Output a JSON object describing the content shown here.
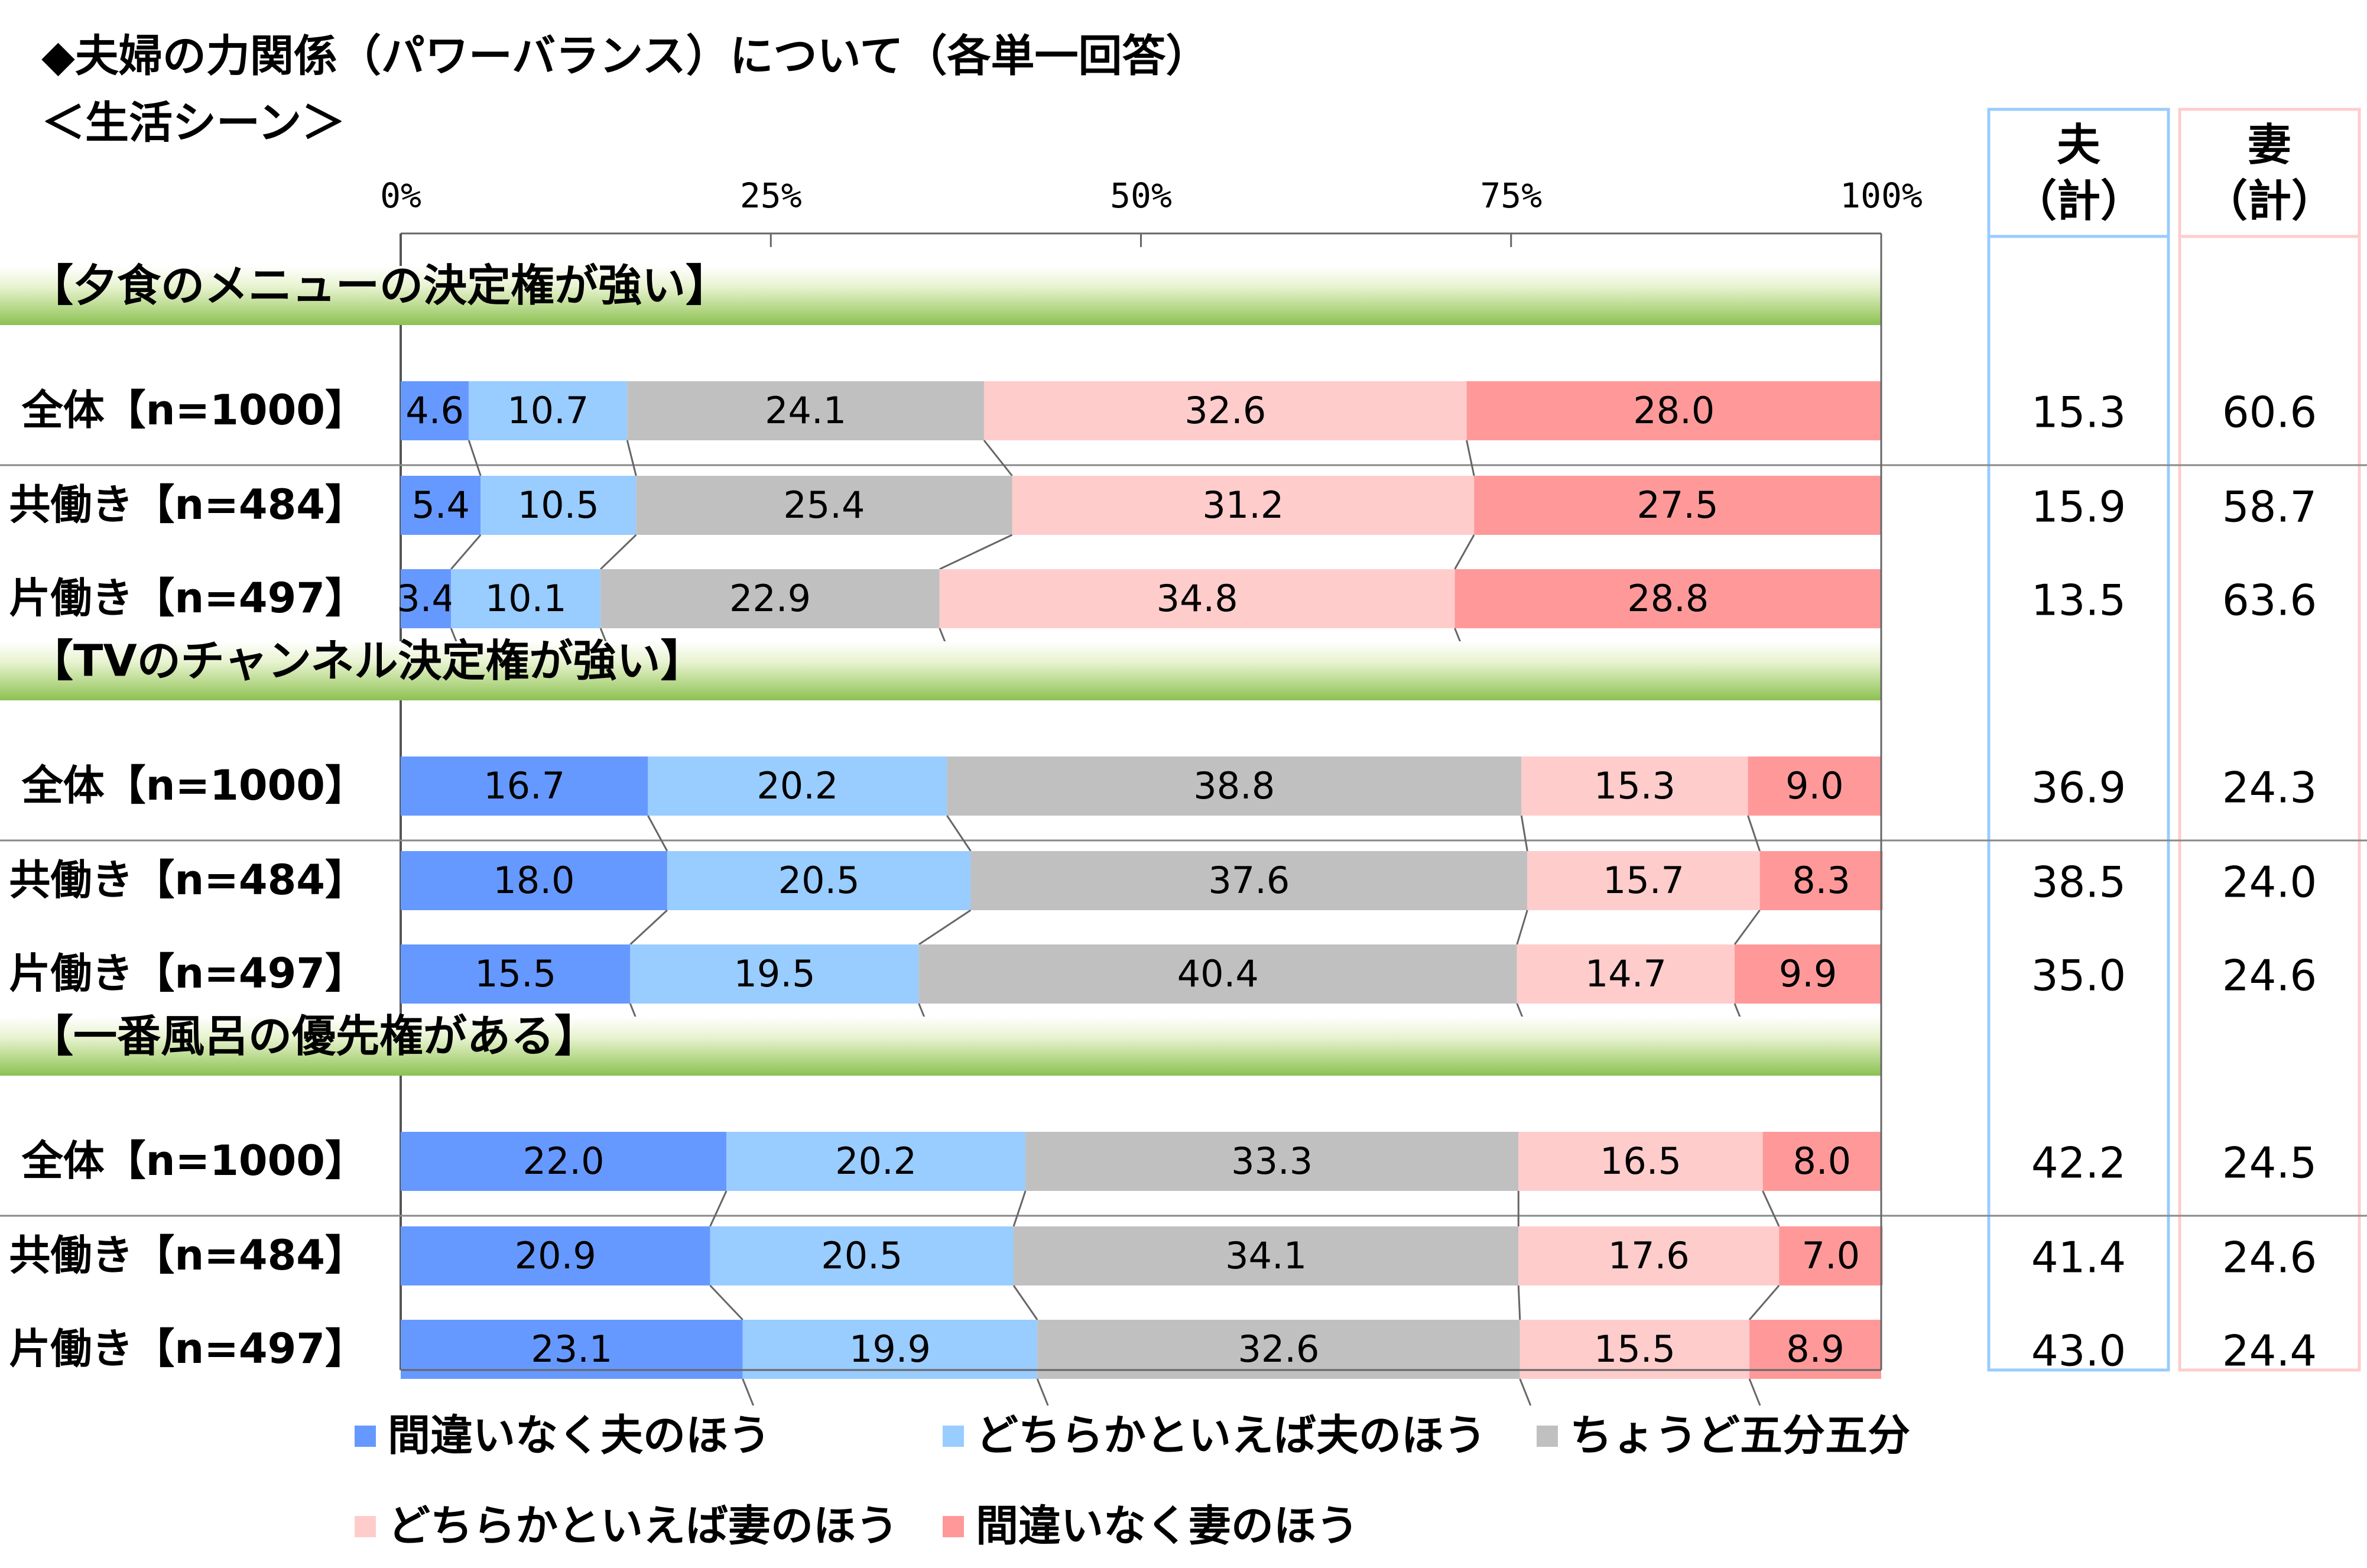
{
  "title_line1": "◆夫婦の力関係（パワーバランス）について（各単一回答）",
  "title_line2": "＜生活シーン＞",
  "chart_data": {
    "type": "bar",
    "orientation": "horizontal",
    "stacked": "percent",
    "x_ticks": [
      "0%",
      "25%",
      "50%",
      "75%",
      "100%"
    ],
    "xlim": [
      0,
      100
    ],
    "series": [
      {
        "name": "間違いなく夫のほう",
        "color": "#6699ff"
      },
      {
        "name": "どちらかといえば夫のほう",
        "color": "#99ccff"
      },
      {
        "name": "ちょうど五分五分",
        "color": "#c0c0c0"
      },
      {
        "name": "どちらかといえば妻のほう",
        "color": "#ffcccc"
      },
      {
        "name": "間違いなく妻のほう",
        "color": "#ff9999"
      }
    ],
    "summary_headers": [
      {
        "line1": "夫",
        "line2": "（計）",
        "color": "#99ccff"
      },
      {
        "line1": "妻",
        "line2": "（計）",
        "color": "#ffcccc"
      }
    ],
    "groups": [
      {
        "title": "【夕食のメニューの決定権が強い】",
        "rows": [
          {
            "label": "全体【n=1000】",
            "values": [
              4.6,
              10.7,
              24.1,
              32.6,
              28.0
            ],
            "labels": [
              "4.6",
              "10.7",
              "24.1",
              "32.6",
              "28.0"
            ],
            "husband_total": "15.3",
            "wife_total": "60.6"
          },
          {
            "label": "共働き【n=484】",
            "values": [
              5.4,
              10.5,
              25.4,
              31.2,
              27.5
            ],
            "labels": [
              "5.4",
              "10.5",
              "25.4",
              "31.2",
              "27.5"
            ],
            "husband_total": "15.9",
            "wife_total": "58.7"
          },
          {
            "label": "片働き【n=497】",
            "values": [
              3.4,
              10.1,
              22.9,
              34.8,
              28.8
            ],
            "labels": [
              "3.4",
              "10.1",
              "22.9",
              "34.8",
              "28.8"
            ],
            "husband_total": "13.5",
            "wife_total": "63.6"
          }
        ]
      },
      {
        "title": "【TVのチャンネル決定権が強い】",
        "rows": [
          {
            "label": "全体【n=1000】",
            "values": [
              16.7,
              20.2,
              38.8,
              15.3,
              9.0
            ],
            "labels": [
              "16.7",
              "20.2",
              "38.8",
              "15.3",
              "9.0"
            ],
            "husband_total": "36.9",
            "wife_total": "24.3"
          },
          {
            "label": "共働き【n=484】",
            "values": [
              18.0,
              20.5,
              37.6,
              15.7,
              8.3
            ],
            "labels": [
              "18.0",
              "20.5",
              "37.6",
              "15.7",
              "8.3"
            ],
            "husband_total": "38.5",
            "wife_total": "24.0"
          },
          {
            "label": "片働き【n=497】",
            "values": [
              15.5,
              19.5,
              40.4,
              14.7,
              9.9
            ],
            "labels": [
              "15.5",
              "19.5",
              "40.4",
              "14.7",
              "9.9"
            ],
            "husband_total": "35.0",
            "wife_total": "24.6"
          }
        ]
      },
      {
        "title": "【一番風呂の優先権がある】",
        "rows": [
          {
            "label": "全体【n=1000】",
            "values": [
              22.0,
              20.2,
              33.3,
              16.5,
              8.0
            ],
            "labels": [
              "22.0",
              "20.2",
              "33.3",
              "16.5",
              "8.0"
            ],
            "husband_total": "42.2",
            "wife_total": "24.5"
          },
          {
            "label": "共働き【n=484】",
            "values": [
              20.9,
              20.5,
              34.1,
              17.6,
              7.0
            ],
            "labels": [
              "20.9",
              "20.5",
              "34.1",
              "17.6",
              "7.0"
            ],
            "husband_total": "41.4",
            "wife_total": "24.6"
          },
          {
            "label": "片働き【n=497】",
            "values": [
              23.1,
              19.9,
              32.6,
              15.5,
              8.9
            ],
            "labels": [
              "23.1",
              "19.9",
              "32.6",
              "15.5",
              "8.9"
            ],
            "husband_total": "43.0",
            "wife_total": "24.4"
          }
        ]
      }
    ]
  }
}
